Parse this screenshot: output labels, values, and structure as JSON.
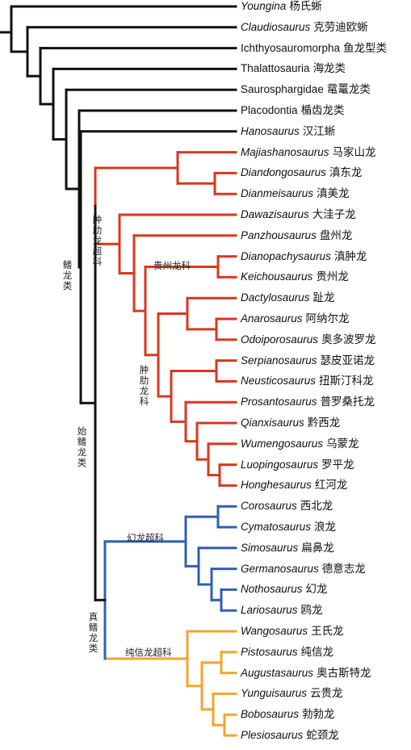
{
  "colors": {
    "basal": "#111111",
    "pachypleurosauria": "#d9381e",
    "nothosauroidea": "#2f5fb3",
    "pistosauroidea": "#f2a52c"
  },
  "taxa": [
    {
      "genus": "Youngina",
      "italic": true,
      "cn": "杨氏蜥"
    },
    {
      "genus": "Claudiosaurus",
      "italic": true,
      "cn": "克劳迪欧蜥"
    },
    {
      "genus": "Ichthyosauromorpha",
      "italic": false,
      "cn": "鱼龙型类"
    },
    {
      "genus": "Thalattosauria",
      "italic": false,
      "cn": "海龙类"
    },
    {
      "genus": "Saurosphargidae",
      "italic": false,
      "cn": "鼋鼍龙类"
    },
    {
      "genus": "Placodontia",
      "italic": false,
      "cn": "楯齿龙类"
    },
    {
      "genus": "Hanosaurus",
      "italic": true,
      "cn": "汉江蜥"
    },
    {
      "genus": "Majiashanosaurus",
      "italic": true,
      "cn": "马家山龙"
    },
    {
      "genus": "Diandongosaurus",
      "italic": true,
      "cn": "滇东龙"
    },
    {
      "genus": "Dianmeisaurus",
      "italic": true,
      "cn": "滇美龙"
    },
    {
      "genus": "Dawazisaurus",
      "italic": true,
      "cn": "大洼子龙"
    },
    {
      "genus": "Panzhousaurus",
      "italic": true,
      "cn": "盘州龙"
    },
    {
      "genus": "Dianopachysaurus",
      "italic": true,
      "cn": "滇肿龙"
    },
    {
      "genus": "Keichousaurus",
      "italic": true,
      "cn": "贵州龙"
    },
    {
      "genus": "Dactylosaurus",
      "italic": true,
      "cn": "趾龙"
    },
    {
      "genus": "Anarosaurus",
      "italic": true,
      "cn": "阿纳尔龙"
    },
    {
      "genus": "Odoiporosaurus",
      "italic": true,
      "cn": "奥多波罗龙"
    },
    {
      "genus": "Serpianosaurus",
      "italic": true,
      "cn": "瑟皮亚诺龙"
    },
    {
      "genus": "Neusticosaurus",
      "italic": true,
      "cn": "扭斯汀科龙"
    },
    {
      "genus": "Prosantosaurus",
      "italic": true,
      "cn": "普罗桑托龙"
    },
    {
      "genus": "Qianxisaurus",
      "italic": true,
      "cn": "黔西龙"
    },
    {
      "genus": "Wumengosaurus",
      "italic": true,
      "cn": "乌蒙龙"
    },
    {
      "genus": "Luopingosaurus",
      "italic": true,
      "cn": "罗平龙"
    },
    {
      "genus": "Honghesaurus",
      "italic": true,
      "cn": "红河龙"
    },
    {
      "genus": "Corosaurus",
      "italic": true,
      "cn": "西北龙"
    },
    {
      "genus": "Cymatosaurus",
      "italic": true,
      "cn": "浪龙"
    },
    {
      "genus": "Simosaurus",
      "italic": true,
      "cn": "扁鼻龙"
    },
    {
      "genus": "Germanosaurus",
      "italic": true,
      "cn": "德意志龙"
    },
    {
      "genus": "Nothosaurus",
      "italic": true,
      "cn": "幻龙"
    },
    {
      "genus": "Lariosaurus",
      "italic": true,
      "cn": "鸥龙"
    },
    {
      "genus": "Wangosaurus",
      "italic": true,
      "cn": "王氏龙"
    },
    {
      "genus": "Pistosaurus",
      "italic": true,
      "cn": "纯信龙"
    },
    {
      "genus": "Augustasaurus",
      "italic": true,
      "cn": "奥古斯特龙"
    },
    {
      "genus": "Yunguisaurus",
      "italic": true,
      "cn": "云贵龙"
    },
    {
      "genus": "Bobosaurus",
      "italic": true,
      "cn": "勃勃龙"
    },
    {
      "genus": "Plesiosaurus",
      "italic": true,
      "cn": "蛇颈龙"
    }
  ],
  "clades": {
    "sauropterygia": "鳍龙类",
    "eosauropterygia": "始鳍龙类",
    "eusauropterygia": "真鳍龙类",
    "pachypleurosauroidea": "肿肋龙超科",
    "pachypleurosauridae": "肿肋龙科",
    "keichousauridae": "贵州龙科",
    "nothosauroidea": "幻龙超科",
    "pistosauroidea": "纯信龙超科"
  }
}
